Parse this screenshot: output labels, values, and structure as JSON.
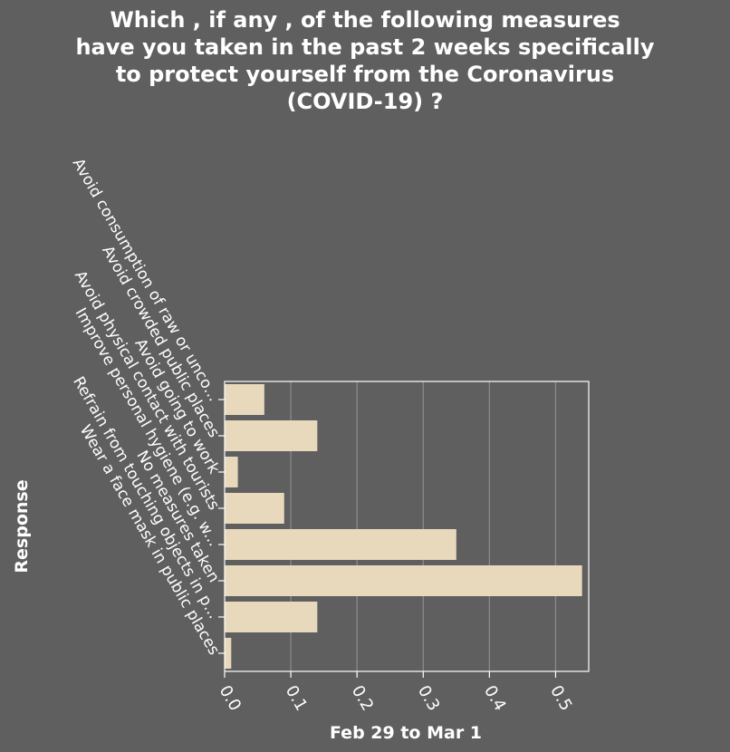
{
  "chart_data": {
    "type": "bar",
    "orientation": "horizontal",
    "title": "Which , if any , of the following measures have you taken in the past 2 weeks specifically to protect yourself from the Coronavirus (COVID-19) ?",
    "title_lines": [
      "Which , if any , of the following measures",
      "have you taken in the past 2 weeks specifically",
      "to protect yourself from the Coronavirus",
      "(COVID-19) ?"
    ],
    "xlabel": "Feb 29 to Mar 1",
    "ylabel": "Response",
    "categories": [
      "Avoid consumption of raw or unco...",
      "Avoid crowded public places",
      "Avoid going to work",
      "Avoid physical contact with tourists",
      "Improve personal hygiene (e.g. w...",
      "No measures taken",
      "Refrain from touching objects in p...",
      "Wear a face mask in public places"
    ],
    "values": [
      0.06,
      0.14,
      0.02,
      0.09,
      0.35,
      0.54,
      0.14,
      0.01
    ],
    "xlim": [
      0,
      0.55
    ],
    "xticks": [
      "0.0",
      "0.1",
      "0.2",
      "0.3",
      "0.4",
      "0.5"
    ],
    "grid": true,
    "colors": {
      "background": "#5f5f5f",
      "bar": "#e8d9bc",
      "grid": "#8a8a8a",
      "text": "#ffffff"
    }
  }
}
